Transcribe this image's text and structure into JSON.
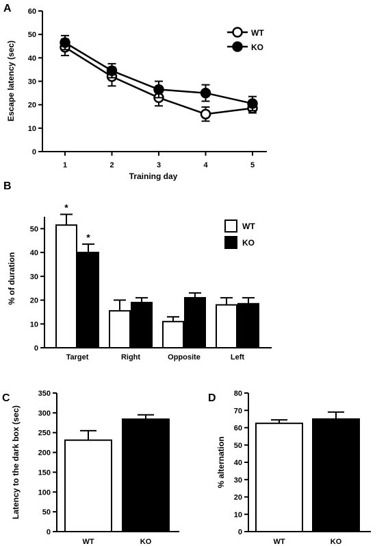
{
  "chart_data": [
    {
      "panel": "A",
      "type": "line",
      "title": "",
      "xlabel": "Training day",
      "ylabel": "Escape latency (sec)",
      "x": [
        1,
        2,
        3,
        4,
        5
      ],
      "xticks": [
        "1",
        "2",
        "3",
        "4",
        "5"
      ],
      "ylim": [
        0,
        60
      ],
      "yticks": [
        0,
        10,
        20,
        30,
        40,
        50,
        60
      ],
      "grid": false,
      "legend": "top-right",
      "series": [
        {
          "name": "WT",
          "marker": "open-circle",
          "values": [
            44.5,
            32,
            23,
            16,
            18.5
          ],
          "errors": [
            3.5,
            4,
            3.5,
            3,
            2
          ]
        },
        {
          "name": "KO",
          "marker": "filled-circle",
          "values": [
            46.5,
            34.5,
            26.5,
            25,
            20.5
          ],
          "errors": [
            3,
            3,
            3.5,
            3.5,
            3
          ]
        }
      ]
    },
    {
      "panel": "B",
      "type": "bar",
      "title": "",
      "xlabel": "",
      "ylabel": "% of duration",
      "categories": [
        "Target",
        "Right",
        "Opposite",
        "Left"
      ],
      "ylim": [
        0,
        55
      ],
      "yticks": [
        0,
        10,
        20,
        30,
        40,
        50
      ],
      "grid": false,
      "legend": "top-right",
      "series": [
        {
          "name": "WT",
          "fill": "#ffffff",
          "values": [
            51.5,
            15.5,
            11,
            18
          ],
          "errors": [
            4.5,
            4.5,
            2,
            3
          ]
        },
        {
          "name": "KO",
          "fill": "#000000",
          "values": [
            40,
            19,
            21,
            18.5
          ],
          "errors": [
            3.5,
            2,
            2,
            2.5
          ]
        }
      ],
      "annotations": [
        {
          "text": "*",
          "series": "WT",
          "category": "Target"
        },
        {
          "text": "*",
          "series": "KO",
          "category": "Target"
        }
      ]
    },
    {
      "panel": "C",
      "type": "bar",
      "title": "",
      "xlabel": "",
      "ylabel": "Latency to the dark box (sec)",
      "categories": [
        "WT",
        "KO"
      ],
      "fills": [
        "#ffffff",
        "#000000"
      ],
      "values": [
        231,
        284
      ],
      "errors": [
        24,
        11
      ],
      "ylim": [
        0,
        350
      ],
      "yticks": [
        0,
        50,
        100,
        150,
        200,
        250,
        300,
        350
      ],
      "grid": false
    },
    {
      "panel": "D",
      "type": "bar",
      "title": "",
      "xlabel": "",
      "ylabel": "% alternation",
      "categories": [
        "WT",
        "KO"
      ],
      "fills": [
        "#ffffff",
        "#000000"
      ],
      "values": [
        62.5,
        65
      ],
      "errors": [
        2,
        4
      ],
      "ylim": [
        0,
        80
      ],
      "yticks": [
        0,
        10,
        20,
        30,
        40,
        50,
        60,
        70,
        80
      ],
      "grid": false
    }
  ]
}
